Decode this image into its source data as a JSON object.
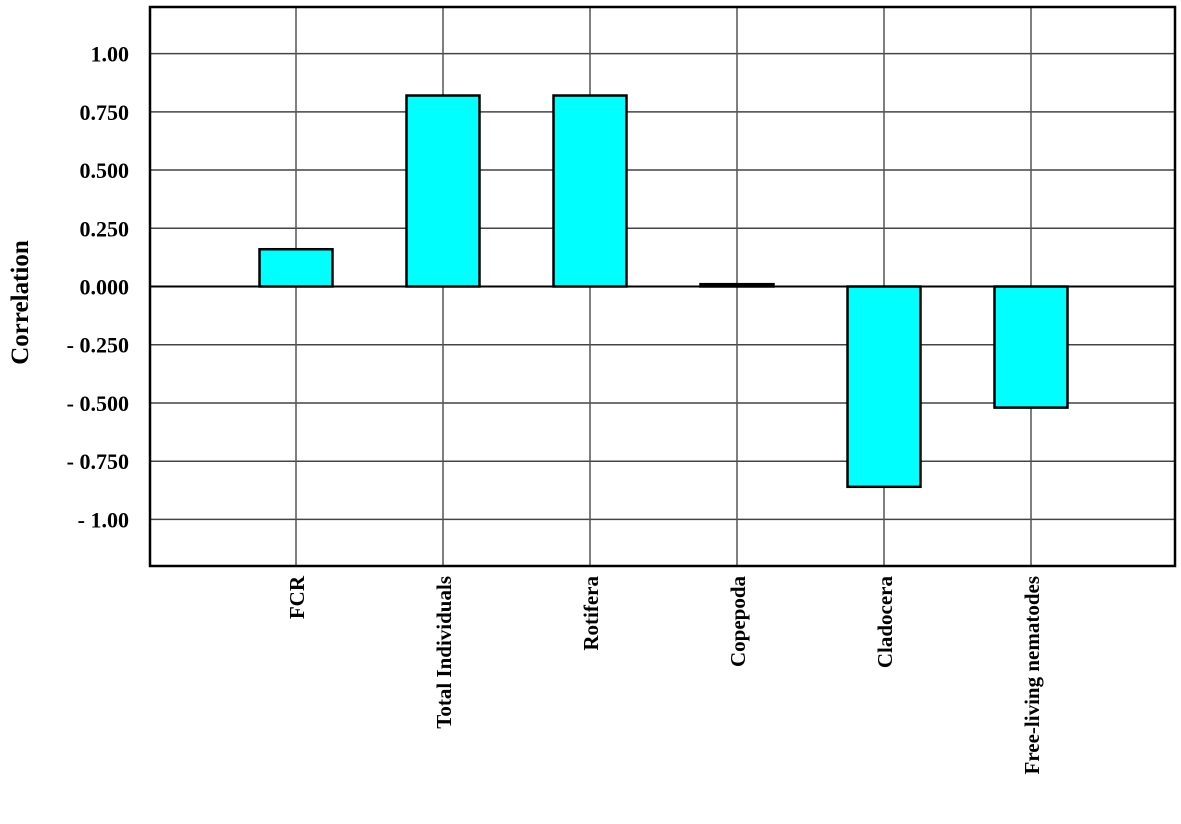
{
  "chart_data": {
    "type": "bar",
    "title": "",
    "xlabel": "",
    "ylabel": "Correlation",
    "ylim": [
      -1.2,
      1.2
    ],
    "categories": [
      "FCR",
      "Total Individuals",
      "Rotifera",
      "Copepoda",
      "Cladocera",
      "Free-living nematodes"
    ],
    "values": [
      0.16,
      0.82,
      0.82,
      0.01,
      -0.86,
      -0.52
    ],
    "yticks": [
      1.0,
      0.75,
      0.5,
      0.25,
      0.0,
      -0.25,
      -0.5,
      -0.75,
      -1.0
    ],
    "ytick_labels": [
      "1.00",
      "0.750",
      "0.500",
      "0.250",
      "0.000",
      "- 0.250",
      "- 0.500",
      "- 0.750",
      "- 1.00"
    ],
    "grid": true,
    "legend": "none",
    "colors": {
      "bar_fill": "#00FFFF",
      "bar_stroke": "#000000",
      "axis": "#000000",
      "grid": "#555555"
    }
  }
}
